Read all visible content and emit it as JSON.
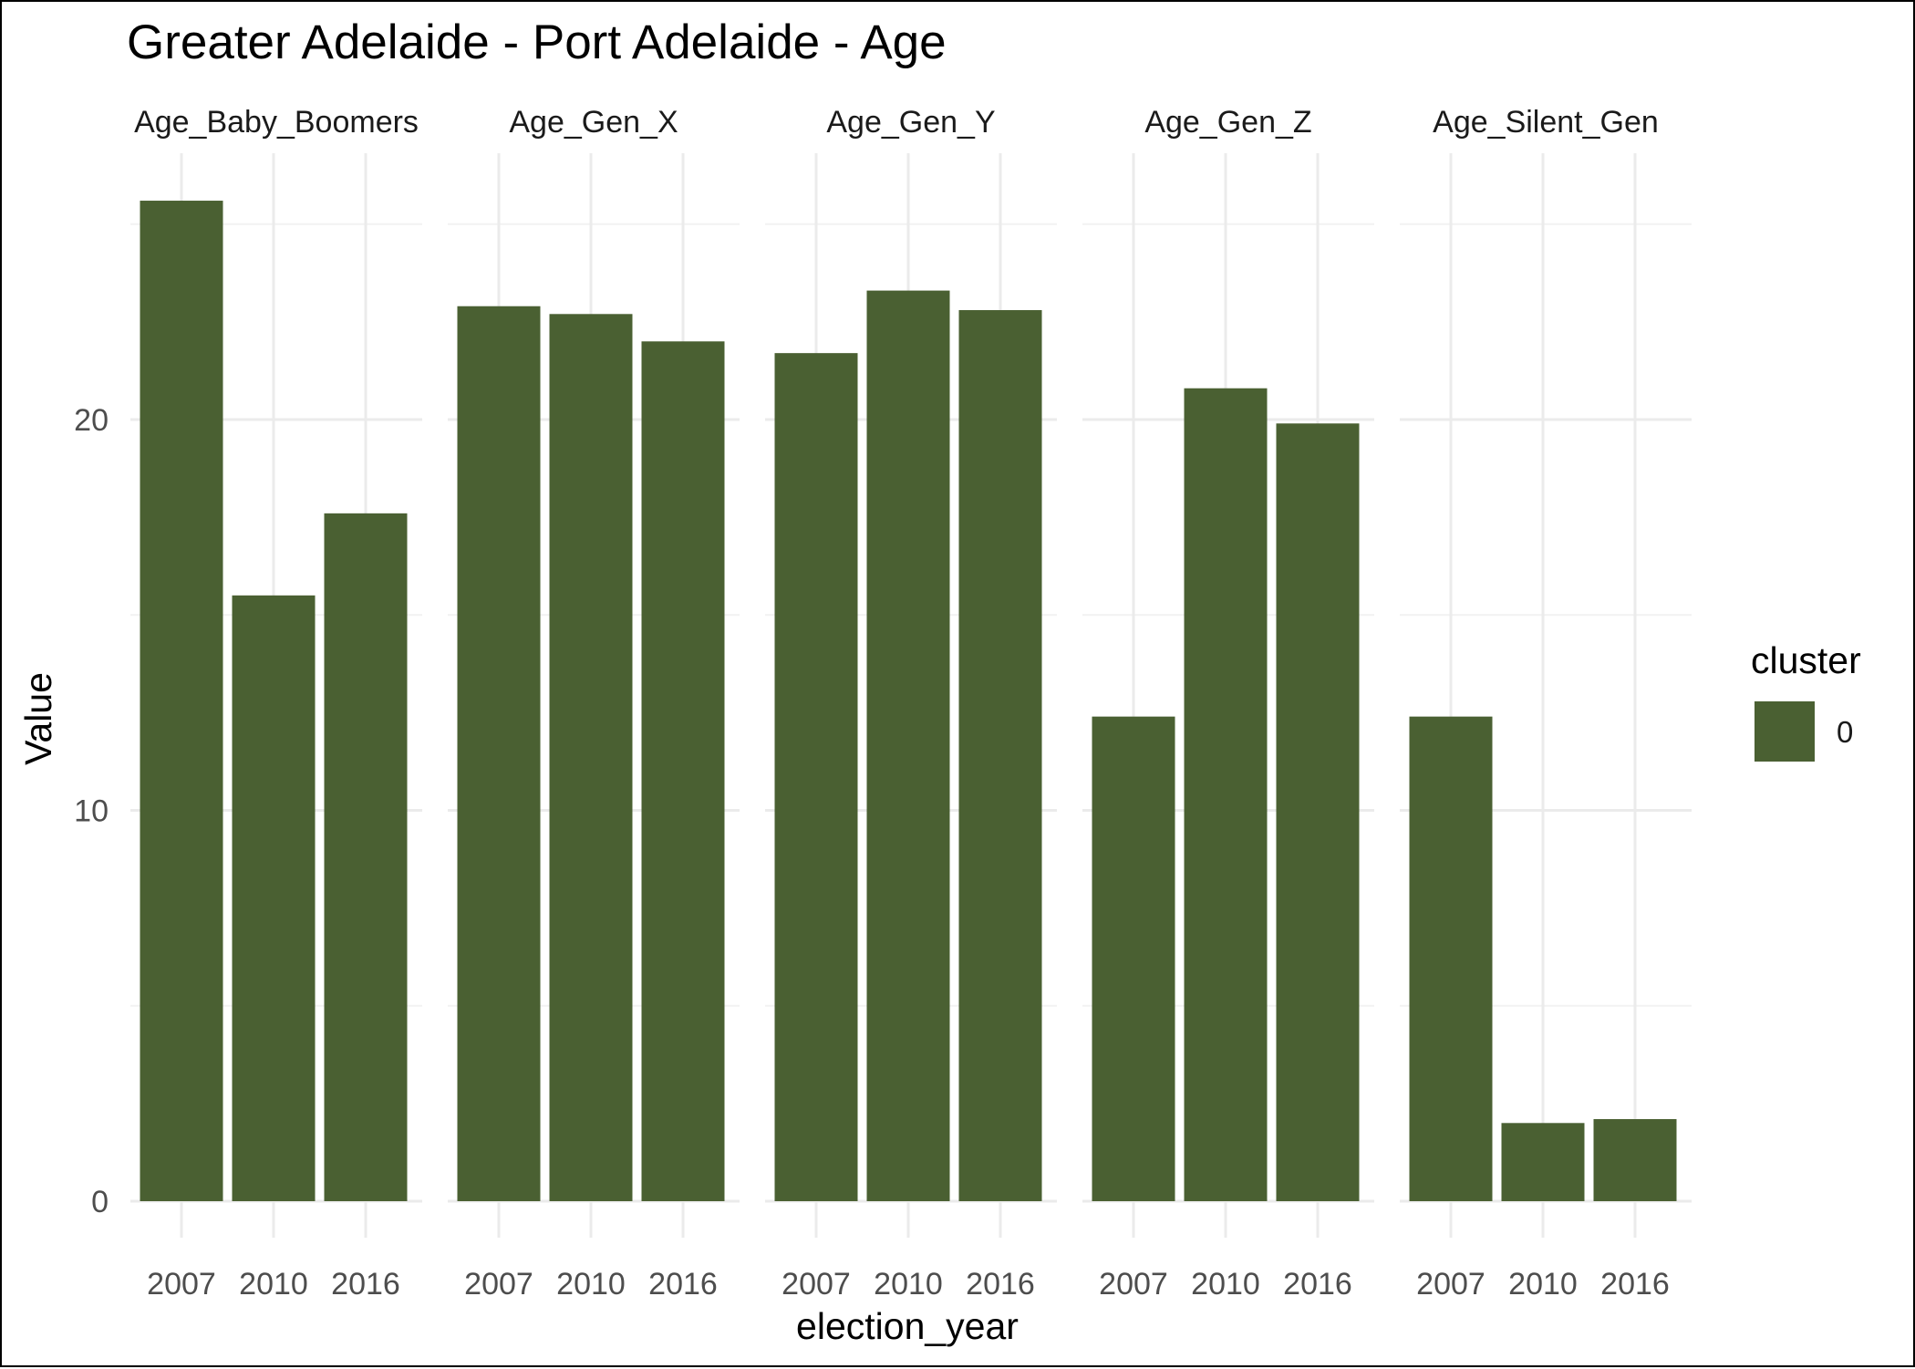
{
  "chart_data": {
    "type": "bar",
    "title": "Greater Adelaide - Port Adelaide - Age",
    "xlabel": "election_year",
    "ylabel": "Value",
    "ylim": [
      0,
      26
    ],
    "y_ticks": [
      0,
      10,
      20
    ],
    "categories": [
      "2007",
      "2010",
      "2016"
    ],
    "facets": [
      {
        "name": "Age_Baby_Boomers",
        "values": [
          25.6,
          15.5,
          17.6
        ]
      },
      {
        "name": "Age_Gen_X",
        "values": [
          22.9,
          22.7,
          22.0
        ]
      },
      {
        "name": "Age_Gen_Y",
        "values": [
          21.7,
          23.3,
          22.8
        ]
      },
      {
        "name": "Age_Gen_Z",
        "values": [
          12.4,
          20.8,
          19.9
        ]
      },
      {
        "name": "Age_Silent_Gen",
        "values": [
          12.4,
          2.0,
          2.1
        ]
      }
    ],
    "legend": {
      "title": "cluster",
      "labels": [
        "0"
      ],
      "position": "right"
    },
    "bar_color": "#4a6032",
    "grid": true
  }
}
